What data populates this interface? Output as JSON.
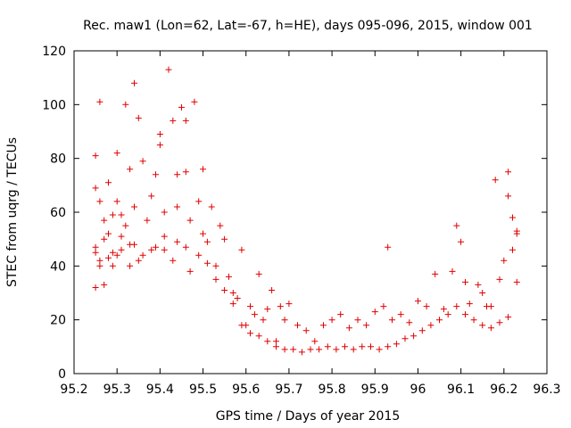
{
  "chart_data": {
    "type": "scatter",
    "title": "Rec. maw1 (Lon=62, Lat=-67, h=HE), days 095-096, 2015, window 001",
    "xlabel": "GPS time / Days of year 2015",
    "ylabel": "STEC from uqrg / TECUs",
    "xlim": [
      95.2,
      96.3
    ],
    "ylim": [
      0,
      120
    ],
    "xticks": [
      95.2,
      95.3,
      95.4,
      95.5,
      95.6,
      95.7,
      95.8,
      95.9,
      96,
      96.1,
      96.2,
      96.3
    ],
    "xtick_labels": [
      "95.2",
      "95.3",
      "95.4",
      "95.5",
      "95.6",
      "95.7",
      "95.8",
      "95.9",
      "96",
      "96.1",
      "96.2",
      "96.3"
    ],
    "yticks": [
      0,
      20,
      40,
      60,
      80,
      100,
      120
    ],
    "ytick_labels": [
      "0",
      "20",
      "40",
      "60",
      "80",
      "100",
      "120"
    ],
    "marker": "+",
    "color": "#e00000",
    "series": [
      {
        "name": "STEC",
        "x": [
          95.25,
          95.25,
          95.25,
          95.26,
          95.26,
          95.26,
          95.27,
          95.27,
          95.28,
          95.28,
          95.29,
          95.29,
          95.3,
          95.3,
          95.31,
          95.31,
          95.32,
          95.32,
          95.33,
          95.33,
          95.34,
          95.34,
          95.35,
          95.35,
          95.36,
          95.37,
          95.38,
          95.39,
          95.4,
          95.4,
          95.41,
          95.41,
          95.42,
          95.43,
          95.44,
          95.44,
          95.45,
          95.46,
          95.46,
          95.47,
          95.48,
          95.49,
          95.5,
          95.5,
          95.51,
          95.52,
          95.53,
          95.54,
          95.55,
          95.56,
          95.57,
          95.58,
          95.59,
          95.6,
          95.61,
          95.62,
          95.63,
          95.64,
          95.65,
          95.66,
          95.67,
          95.68,
          95.69,
          95.7,
          95.72,
          95.74,
          95.76,
          95.78,
          95.8,
          95.82,
          95.84,
          95.86,
          95.88,
          95.9,
          95.92,
          95.93,
          95.94,
          95.96,
          95.98,
          96.0,
          96.02,
          96.04,
          96.06,
          96.08,
          96.09,
          96.1,
          96.11,
          96.12,
          96.14,
          96.15,
          96.16,
          96.17,
          96.18,
          96.19,
          96.2,
          96.21,
          96.21,
          96.22,
          96.22,
          96.23,
          96.23,
          95.25,
          95.25,
          95.26,
          95.27,
          95.28,
          95.29,
          95.3,
          95.31,
          95.33,
          95.34,
          95.36,
          95.38,
          95.39,
          95.41,
          95.43,
          95.44,
          95.46,
          95.47,
          95.49,
          95.51,
          95.53,
          95.55,
          95.57,
          95.59,
          95.61,
          95.63,
          95.65,
          95.67,
          95.69,
          95.71,
          95.73,
          95.75,
          95.77,
          95.79,
          95.81,
          95.83,
          95.85,
          95.87,
          95.89,
          95.91,
          95.93,
          95.95,
          95.97,
          95.99,
          96.01,
          96.03,
          96.05,
          96.07,
          96.09,
          96.11,
          96.13,
          96.15,
          96.17,
          96.19,
          96.21,
          96.23
        ],
        "y": [
          81,
          69,
          47,
          101,
          64,
          42,
          57,
          33,
          71,
          52,
          59,
          40,
          82,
          64,
          59,
          46,
          100,
          55,
          76,
          48,
          108,
          62,
          95,
          42,
          79,
          57,
          66,
          74,
          85,
          89,
          60,
          46,
          113,
          94,
          74,
          62,
          99,
          94,
          75,
          57,
          101,
          64,
          76,
          52,
          49,
          62,
          40,
          55,
          50,
          36,
          30,
          28,
          46,
          18,
          25,
          22,
          37,
          20,
          24,
          31,
          12,
          25,
          20,
          26,
          18,
          16,
          12,
          18,
          20,
          22,
          17,
          20,
          18,
          23,
          25,
          47,
          20,
          22,
          19,
          27,
          25,
          37,
          24,
          38,
          55,
          49,
          34,
          26,
          33,
          30,
          25,
          25,
          72,
          35,
          42,
          75,
          66,
          46,
          58,
          53,
          52,
          32,
          45,
          40,
          50,
          43,
          45,
          44,
          51,
          40,
          48,
          44,
          46,
          47,
          51,
          42,
          49,
          47,
          38,
          44,
          41,
          35,
          31,
          26,
          18,
          15,
          14,
          12,
          10,
          9,
          9,
          8,
          9,
          9,
          10,
          9,
          10,
          9,
          10,
          10,
          9,
          10,
          11,
          13,
          14,
          16,
          18,
          20,
          22,
          25,
          22,
          20,
          18,
          17,
          19,
          21,
          34
        ]
      }
    ]
  }
}
